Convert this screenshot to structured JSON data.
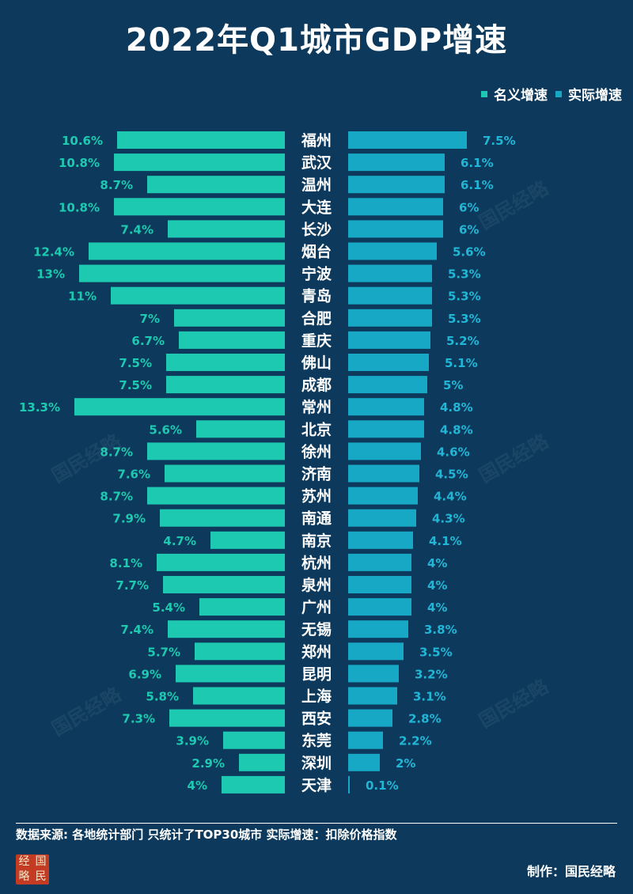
{
  "title": "2022年Q1城市GDP增速",
  "legend": {
    "nominal": "名义增速",
    "real": "实际增速"
  },
  "colors": {
    "nominal": "#1ec9b1",
    "real": "#16a8c4",
    "background": "#0d3a5c",
    "nominal_label": "#1ec9b1",
    "real_label": "#21b6d6"
  },
  "chart_data": {
    "type": "bar",
    "title": "2022年Q1城市GDP增速",
    "unit": "%",
    "categories": [
      "福州",
      "武汉",
      "温州",
      "大连",
      "长沙",
      "烟台",
      "宁波",
      "青岛",
      "合肥",
      "重庆",
      "佛山",
      "成都",
      "常州",
      "北京",
      "徐州",
      "济南",
      "苏州",
      "南通",
      "南京",
      "杭州",
      "泉州",
      "广州",
      "无锡",
      "郑州",
      "昆明",
      "上海",
      "西安",
      "东莞",
      "深圳",
      "天津"
    ],
    "series": [
      {
        "name": "名义增速",
        "values": [
          10.6,
          10.8,
          8.7,
          10.8,
          7.4,
          12.4,
          13,
          11,
          7,
          6.7,
          7.5,
          7.5,
          13.3,
          5.6,
          8.7,
          7.6,
          8.7,
          7.9,
          4.7,
          8.1,
          7.7,
          5.4,
          7.4,
          5.7,
          6.9,
          5.8,
          7.3,
          3.9,
          2.9,
          4
        ]
      },
      {
        "name": "实际增速",
        "values": [
          7.5,
          6.1,
          6.1,
          6,
          6,
          5.6,
          5.3,
          5.3,
          5.3,
          5.2,
          5.1,
          5,
          4.8,
          4.8,
          4.6,
          4.5,
          4.4,
          4.3,
          4.1,
          4,
          4,
          4,
          3.8,
          3.5,
          3.2,
          3.1,
          2.8,
          2.2,
          2,
          0.1
        ]
      }
    ]
  },
  "footer": {
    "source": "数据来源: 各地统计部门  只统计了TOP30城市  实际增速：扣除价格指数",
    "credit": "制作：国民经略",
    "logo_chars": [
      "经",
      "国",
      "略",
      "民"
    ]
  },
  "watermark_text": "国民经略"
}
